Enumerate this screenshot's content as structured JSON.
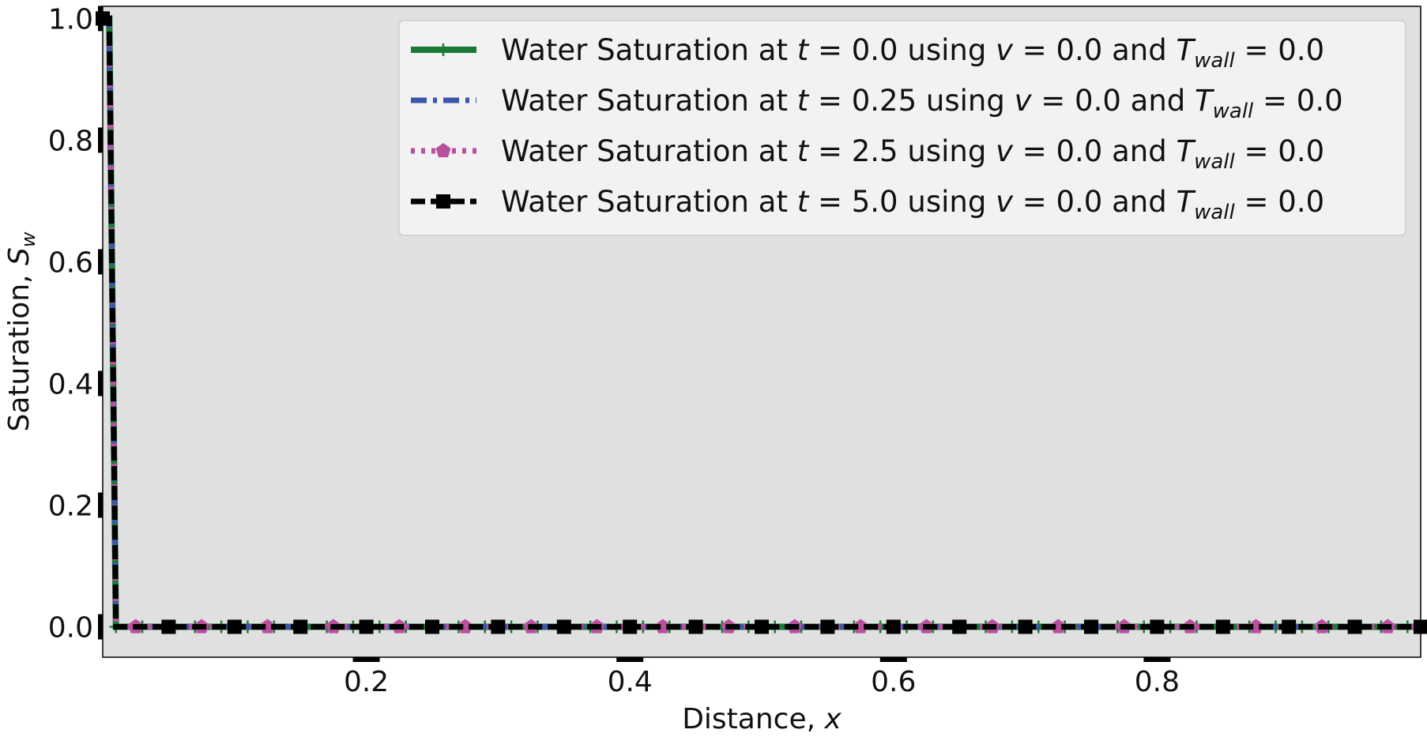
{
  "chart_data": {
    "type": "line",
    "xlabel": "Distance, ",
    "xlabel_var": "x",
    "ylabel": "Saturation, ",
    "ylabel_var": "S",
    "ylabel_sub": "w",
    "xlim": [
      0.0,
      1.0
    ],
    "ylim": [
      -0.05,
      1.02
    ],
    "xticks": [
      0.2,
      0.4,
      0.6,
      0.8
    ],
    "xtick_labels": [
      "0.2",
      "0.4",
      "0.6",
      "0.8"
    ],
    "yticks": [
      0.0,
      0.2,
      0.4,
      0.6,
      0.8,
      1.0
    ],
    "ytick_labels": [
      "0.0",
      "0.2",
      "0.4",
      "0.6",
      "0.8",
      "1.0"
    ],
    "background": "#e0e0e0",
    "grid": false,
    "legend_position": "top-right",
    "series": [
      {
        "legend": [
          "Water Saturation at ",
          "t",
          " = 0.0 using ",
          "v",
          " = 0.0 and ",
          "T",
          "wall",
          " = 0.0"
        ],
        "color": "#1a7a35",
        "style": "solid",
        "marker": "plus",
        "x": [
          0.0,
          0.005,
          0.01,
          1.0
        ],
        "y": [
          1.0,
          1.0,
          0.0,
          0.0
        ]
      },
      {
        "legend": [
          "Water Saturation at ",
          "t",
          " = 0.25 using ",
          "v",
          " = 0.0 and ",
          "T",
          "wall",
          " = 0.0"
        ],
        "color": "#3a56aa",
        "style": "dashdot",
        "marker": "none",
        "x": [
          0.0,
          0.005,
          0.01,
          1.0
        ],
        "y": [
          1.0,
          1.0,
          0.0,
          0.0
        ]
      },
      {
        "legend": [
          "Water Saturation at ",
          "t",
          " = 2.5 using ",
          "v",
          " = 0.0 and ",
          "T",
          "wall",
          " = 0.0"
        ],
        "color": "#b8509e",
        "style": "dotted",
        "marker": "pentagon",
        "x": [
          0.0,
          0.005,
          0.01,
          1.0
        ],
        "y": [
          1.0,
          1.0,
          0.0,
          0.0
        ]
      },
      {
        "legend": [
          "Water Saturation at ",
          "t",
          " = 5.0 using ",
          "v",
          " = 0.0 and ",
          "T",
          "wall",
          " = 0.0"
        ],
        "color": "#000000",
        "style": "dashed",
        "marker": "square",
        "x": [
          0.0,
          0.005,
          0.01,
          1.0
        ],
        "y": [
          1.0,
          1.0,
          0.0,
          0.0
        ]
      }
    ]
  }
}
